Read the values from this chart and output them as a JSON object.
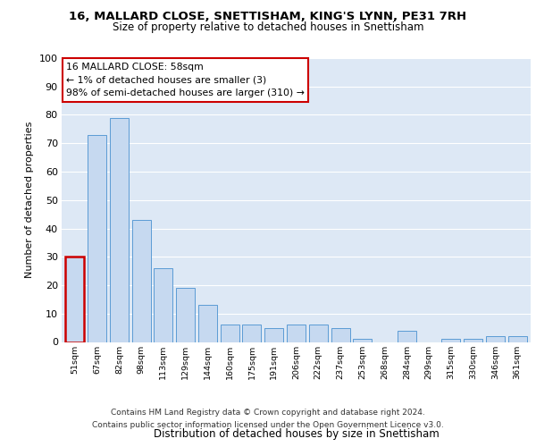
{
  "title1": "16, MALLARD CLOSE, SNETTISHAM, KING'S LYNN, PE31 7RH",
  "title2": "Size of property relative to detached houses in Snettisham",
  "xlabel": "Distribution of detached houses by size in Snettisham",
  "ylabel": "Number of detached properties",
  "categories": [
    "51sqm",
    "67sqm",
    "82sqm",
    "98sqm",
    "113sqm",
    "129sqm",
    "144sqm",
    "160sqm",
    "175sqm",
    "191sqm",
    "206sqm",
    "222sqm",
    "237sqm",
    "253sqm",
    "268sqm",
    "284sqm",
    "299sqm",
    "315sqm",
    "330sqm",
    "346sqm",
    "361sqm"
  ],
  "values": [
    30,
    73,
    79,
    43,
    26,
    19,
    13,
    6,
    6,
    5,
    6,
    6,
    5,
    1,
    0,
    4,
    0,
    1,
    1,
    2,
    2
  ],
  "bar_color": "#c6d9f0",
  "bar_edge_color": "#5b9bd5",
  "highlight_index": 0,
  "highlight_bar_edge_color": "#cc0000",
  "annotation_box_text": "16 MALLARD CLOSE: 58sqm\n← 1% of detached houses are smaller (3)\n98% of semi-detached houses are larger (310) →",
  "annotation_box_edge_color": "#cc0000",
  "annotation_box_bg_color": "#ffffff",
  "footer_text": "Contains HM Land Registry data © Crown copyright and database right 2024.\nContains public sector information licensed under the Open Government Licence v3.0.",
  "bg_color": "#ffffff",
  "plot_bg_color": "#dde8f5",
  "grid_color": "#ffffff",
  "ylim": [
    0,
    100
  ],
  "yticks": [
    0,
    10,
    20,
    30,
    40,
    50,
    60,
    70,
    80,
    90,
    100
  ]
}
